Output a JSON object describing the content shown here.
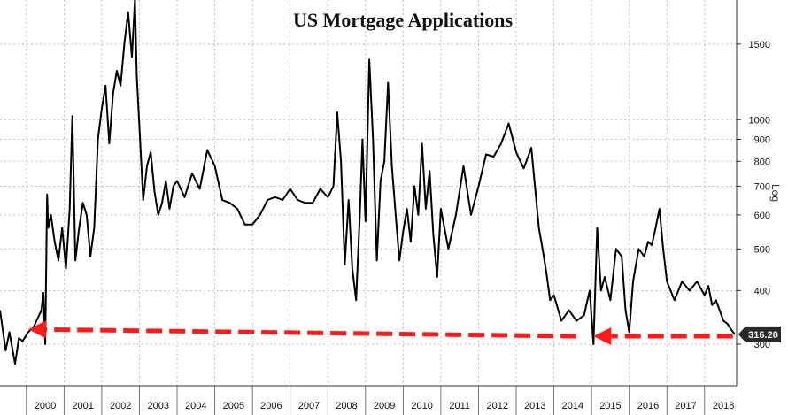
{
  "chart_data": {
    "type": "line",
    "title": "US Mortgage Applications",
    "ylabel": "Log",
    "y_scale": "log",
    "ylim": [
      240,
      1900
    ],
    "xlim": [
      1999.3,
      2018.85
    ],
    "grid": true,
    "y_ticks": [
      {
        "value": 300,
        "label": "300"
      },
      {
        "value": 400,
        "label": "400"
      },
      {
        "value": 500,
        "label": "500"
      },
      {
        "value": 600,
        "label": "600"
      },
      {
        "value": 700,
        "label": "700"
      },
      {
        "value": 800,
        "label": "800"
      },
      {
        "value": 900,
        "label": "900"
      },
      {
        "value": 1000,
        "label": "1000"
      },
      {
        "value": 1500,
        "label": "1500"
      }
    ],
    "x_ticks": [
      "2000",
      "2001",
      "2002",
      "2003",
      "2004",
      "2005",
      "2006",
      "2007",
      "2008",
      "2009",
      "2010",
      "2011",
      "2012",
      "2013",
      "2014",
      "2015",
      "2016",
      "2017",
      "2018"
    ],
    "last_value_label": "316.20",
    "series": [
      {
        "color": "#000000",
        "x": [
          1999.3,
          1999.45,
          1999.55,
          1999.7,
          1999.8,
          1999.9,
          2000.05,
          2000.2,
          2000.3,
          2000.4,
          2000.45,
          2000.5,
          2000.55,
          2000.58,
          2000.65,
          2000.75,
          2000.85,
          2000.95,
          2001.05,
          2001.15,
          2001.22,
          2001.3,
          2001.4,
          2001.5,
          2001.6,
          2001.7,
          2001.8,
          2001.9,
          2002.0,
          2002.1,
          2002.2,
          2002.3,
          2002.4,
          2002.5,
          2002.6,
          2002.7,
          2002.8,
          2002.88,
          2002.93,
          2003.0,
          2003.1,
          2003.2,
          2003.3,
          2003.4,
          2003.5,
          2003.6,
          2003.7,
          2003.8,
          2003.9,
          2004.0,
          2004.2,
          2004.4,
          2004.6,
          2004.8,
          2005.0,
          2005.2,
          2005.4,
          2005.6,
          2005.8,
          2006.0,
          2006.2,
          2006.4,
          2006.6,
          2006.8,
          2007.0,
          2007.2,
          2007.4,
          2007.6,
          2007.8,
          2008.0,
          2008.15,
          2008.25,
          2008.35,
          2008.45,
          2008.55,
          2008.65,
          2008.75,
          2008.85,
          2008.92,
          2009.0,
          2009.1,
          2009.2,
          2009.3,
          2009.4,
          2009.5,
          2009.6,
          2009.7,
          2009.8,
          2009.9,
          2010.0,
          2010.1,
          2010.2,
          2010.3,
          2010.4,
          2010.5,
          2010.6,
          2010.7,
          2010.8,
          2010.9,
          2011.0,
          2011.2,
          2011.4,
          2011.6,
          2011.8,
          2012.0,
          2012.2,
          2012.4,
          2012.6,
          2012.8,
          2013.0,
          2013.2,
          2013.4,
          2013.6,
          2013.7,
          2013.8,
          2013.9,
          2014.0,
          2014.2,
          2014.4,
          2014.6,
          2014.8,
          2014.95,
          2015.05,
          2015.15,
          2015.25,
          2015.35,
          2015.5,
          2015.65,
          2015.8,
          2015.9,
          2016.0,
          2016.1,
          2016.25,
          2016.4,
          2016.5,
          2016.6,
          2016.7,
          2016.8,
          2016.9,
          2017.0,
          2017.2,
          2017.4,
          2017.6,
          2017.8,
          2018.0,
          2018.1,
          2018.2,
          2018.3,
          2018.4,
          2018.5,
          2018.6,
          2018.7,
          2018.8
        ],
        "values": [
          360,
          290,
          320,
          270,
          310,
          305,
          320,
          330,
          345,
          360,
          395,
          300,
          670,
          560,
          600,
          520,
          470,
          560,
          450,
          620,
          1020,
          470,
          560,
          640,
          600,
          480,
          560,
          900,
          1060,
          1200,
          880,
          1150,
          1300,
          1200,
          1500,
          1780,
          1400,
          1900,
          1260,
          960,
          650,
          780,
          840,
          680,
          600,
          640,
          720,
          620,
          700,
          720,
          660,
          750,
          690,
          850,
          780,
          650,
          640,
          620,
          570,
          570,
          600,
          650,
          660,
          650,
          690,
          650,
          640,
          640,
          690,
          660,
          700,
          1040,
          800,
          460,
          650,
          450,
          380,
          600,
          900,
          580,
          1380,
          900,
          470,
          720,
          800,
          1220,
          780,
          600,
          470,
          550,
          620,
          520,
          700,
          600,
          880,
          620,
          760,
          540,
          430,
          620,
          500,
          600,
          780,
          600,
          700,
          830,
          820,
          880,
          980,
          840,
          770,
          860,
          560,
          500,
          440,
          380,
          390,
          340,
          360,
          340,
          350,
          400,
          300,
          560,
          400,
          430,
          380,
          500,
          480,
          360,
          320,
          420,
          500,
          480,
          520,
          510,
          560,
          620,
          500,
          420,
          380,
          420,
          400,
          420,
          390,
          410,
          370,
          380,
          360,
          340,
          335,
          325,
          316.2
        ]
      }
    ],
    "annotations": [
      {
        "type": "arrow",
        "from": [
          2014.6,
          313
        ],
        "to": [
          2000.05,
          325
        ],
        "color": "#ff1a1a"
      },
      {
        "type": "arrow",
        "from": [
          2018.75,
          313
        ],
        "to": [
          2015.05,
          313
        ],
        "color": "#ff1a1a"
      }
    ]
  }
}
